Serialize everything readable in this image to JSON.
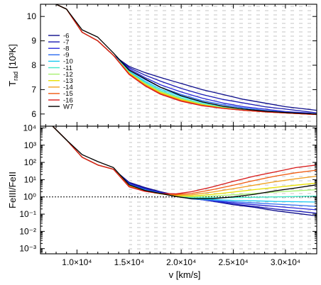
{
  "chart_data": [
    {
      "type": "line",
      "panel": "top",
      "ylabel_main": "T",
      "ylabel_sub": "rad",
      "ylabel_unit": "[10³K]",
      "ylim": [
        5.5,
        10.5
      ],
      "yticks": [
        6,
        7,
        8,
        9,
        10
      ],
      "xlim": [
        6500,
        33000
      ],
      "xticks": [
        10000,
        15000,
        20000,
        25000,
        30000
      ],
      "shaded_region_xmin": 15000,
      "legend": {
        "placement": "upper-left",
        "entries": [
          "-6",
          "-7",
          "-8",
          "-9",
          "-10",
          "-11",
          "-12",
          "-13",
          "-14",
          "-15",
          "-16",
          "W7"
        ]
      },
      "x": [
        7500,
        9000,
        10500,
        12000,
        13500,
        15000,
        16500,
        18000,
        20000,
        22000,
        24000,
        26000,
        28000,
        30000,
        32000,
        33000
      ],
      "inner_common": [
        10.6,
        10.3,
        9.35,
        9.0,
        8.4,
        7.7
      ],
      "series": [
        {
          "name": "-6",
          "color": "#0d0d8c",
          "values": [
            10.6,
            10.3,
            9.35,
            9.0,
            8.4,
            7.95,
            7.7,
            7.5,
            7.25,
            7.0,
            6.8,
            6.6,
            6.45,
            6.3,
            6.2,
            6.15
          ]
        },
        {
          "name": "-7",
          "color": "#1a1ab4",
          "values": [
            10.6,
            10.3,
            9.35,
            9.0,
            8.4,
            7.9,
            7.6,
            7.35,
            7.05,
            6.8,
            6.6,
            6.45,
            6.3,
            6.2,
            6.1,
            6.05
          ]
        },
        {
          "name": "-8",
          "color": "#2828d8",
          "values": [
            10.6,
            10.3,
            9.35,
            9.0,
            8.4,
            7.85,
            7.5,
            7.2,
            6.9,
            6.65,
            6.45,
            6.3,
            6.2,
            6.1,
            6.05,
            6.0
          ]
        },
        {
          "name": "-9",
          "color": "#2c6cf0",
          "values": [
            10.6,
            10.3,
            9.35,
            9.0,
            8.4,
            7.8,
            7.42,
            7.1,
            6.8,
            6.55,
            6.38,
            6.25,
            6.15,
            6.07,
            6.02,
            6.0
          ]
        },
        {
          "name": "-10",
          "color": "#18c8f0",
          "values": [
            10.6,
            10.3,
            9.35,
            9.0,
            8.4,
            7.75,
            7.35,
            7.02,
            6.72,
            6.48,
            6.32,
            6.2,
            6.12,
            6.05,
            6.0,
            5.98
          ]
        },
        {
          "name": "-11",
          "color": "#40e8c8",
          "values": [
            10.6,
            10.3,
            9.35,
            9.0,
            8.4,
            7.72,
            7.3,
            6.96,
            6.66,
            6.43,
            6.28,
            6.17,
            6.1,
            6.04,
            6.0,
            5.98
          ]
        },
        {
          "name": "-12",
          "color": "#a8f070",
          "values": [
            10.6,
            10.3,
            9.35,
            9.0,
            8.4,
            7.7,
            7.26,
            6.92,
            6.62,
            6.4,
            6.26,
            6.16,
            6.09,
            6.04,
            6.0,
            5.98
          ]
        },
        {
          "name": "-13",
          "color": "#e8e000",
          "values": [
            10.6,
            10.3,
            9.35,
            9.0,
            8.4,
            7.68,
            7.23,
            6.88,
            6.59,
            6.38,
            6.25,
            6.15,
            6.09,
            6.04,
            6.0,
            5.98
          ]
        },
        {
          "name": "-14",
          "color": "#f0a020",
          "values": [
            10.6,
            10.3,
            9.35,
            9.0,
            8.4,
            7.66,
            7.2,
            6.85,
            6.56,
            6.36,
            6.24,
            6.15,
            6.09,
            6.04,
            6.0,
            5.98
          ]
        },
        {
          "name": "-15",
          "color": "#f05a10",
          "values": [
            10.6,
            10.3,
            9.35,
            9.0,
            8.4,
            7.64,
            7.18,
            6.83,
            6.54,
            6.35,
            6.23,
            6.15,
            6.09,
            6.04,
            6.0,
            5.98
          ]
        },
        {
          "name": "-16",
          "color": "#d81818",
          "values": [
            10.6,
            10.3,
            9.35,
            9.0,
            8.4,
            7.62,
            7.16,
            6.81,
            6.52,
            6.34,
            6.23,
            6.15,
            6.09,
            6.04,
            6.0,
            5.98
          ]
        },
        {
          "name": "W7",
          "color": "#000000",
          "values": [
            10.6,
            10.3,
            9.45,
            9.15,
            8.5,
            7.8,
            7.45,
            7.1,
            6.75,
            6.5,
            6.32,
            6.2,
            6.12,
            6.06,
            6.02,
            6.0
          ]
        }
      ]
    },
    {
      "type": "line",
      "panel": "bottom",
      "ylabel": "FeIII/FeII",
      "yscale": "log",
      "ylim_log10": [
        -3.3,
        4.1
      ],
      "yticks_log10": [
        -3,
        -2,
        -1,
        0,
        1,
        2,
        3,
        4
      ],
      "ytick_labels": [
        "10⁻³",
        "10⁻²",
        "10⁻¹",
        "10⁰",
        "10¹",
        "10²",
        "10³",
        "10⁴"
      ],
      "xlabel": "v [km/s]",
      "xlim": [
        6500,
        33000
      ],
      "xticks": [
        10000,
        15000,
        20000,
        25000,
        30000
      ],
      "xtick_labels": [
        "1.0×10⁴",
        "1.5×10⁴",
        "2.0×10⁴",
        "2.5×10⁴",
        "3.0×10⁴"
      ],
      "reference_line_log10": 0,
      "shaded_region_xmin": 15000,
      "x": [
        7500,
        9000,
        10500,
        12000,
        13500,
        15000,
        16500,
        18000,
        19500,
        21000,
        23000,
        25000,
        27000,
        29000,
        31000,
        33000
      ],
      "series": [
        {
          "name": "-6",
          "color": "#0d0d8c",
          "values_log10": [
            4.2,
            3.3,
            2.3,
            1.85,
            1.6,
            0.85,
            0.55,
            0.3,
            0.1,
            -0.05,
            -0.25,
            -0.45,
            -0.6,
            -0.8,
            -0.95,
            -1.1
          ]
        },
        {
          "name": "-7",
          "color": "#1a1ab4",
          "values_log10": [
            4.2,
            3.3,
            2.3,
            1.85,
            1.6,
            0.8,
            0.5,
            0.27,
            0.08,
            -0.08,
            -0.25,
            -0.42,
            -0.55,
            -0.7,
            -0.82,
            -0.95
          ]
        },
        {
          "name": "-8",
          "color": "#2828d8",
          "values_log10": [
            4.2,
            3.3,
            2.3,
            1.85,
            1.6,
            0.75,
            0.45,
            0.25,
            0.06,
            -0.1,
            -0.22,
            -0.35,
            -0.45,
            -0.55,
            -0.65,
            -0.75
          ]
        },
        {
          "name": "-9",
          "color": "#2c6cf0",
          "values_log10": [
            4.2,
            3.3,
            2.3,
            1.85,
            1.6,
            0.72,
            0.42,
            0.22,
            0.04,
            -0.12,
            -0.2,
            -0.28,
            -0.35,
            -0.42,
            -0.48,
            -0.55
          ]
        },
        {
          "name": "-10",
          "color": "#18c8f0",
          "values_log10": [
            4.2,
            3.3,
            2.3,
            1.85,
            1.6,
            0.7,
            0.4,
            0.2,
            0.03,
            -0.1,
            -0.15,
            -0.2,
            -0.23,
            -0.26,
            -0.28,
            -0.3
          ]
        },
        {
          "name": "-11",
          "color": "#40e8c8",
          "values_log10": [
            4.2,
            3.3,
            2.3,
            1.85,
            1.6,
            0.68,
            0.38,
            0.19,
            0.04,
            -0.05,
            -0.05,
            -0.04,
            -0.02,
            0.0,
            0.02,
            0.05
          ]
        },
        {
          "name": "-12",
          "color": "#a8f070",
          "values_log10": [
            4.2,
            3.3,
            2.3,
            1.85,
            1.6,
            0.66,
            0.36,
            0.18,
            0.05,
            0.0,
            0.05,
            0.12,
            0.2,
            0.28,
            0.35,
            0.42
          ]
        },
        {
          "name": "-13",
          "color": "#e8e000",
          "values_log10": [
            4.2,
            3.3,
            2.3,
            1.85,
            1.6,
            0.64,
            0.35,
            0.18,
            0.07,
            0.05,
            0.15,
            0.28,
            0.42,
            0.55,
            0.68,
            0.8
          ]
        },
        {
          "name": "-14",
          "color": "#f0a020",
          "values_log10": [
            4.2,
            3.3,
            2.3,
            1.85,
            1.6,
            0.62,
            0.34,
            0.18,
            0.1,
            0.12,
            0.28,
            0.48,
            0.68,
            0.88,
            1.05,
            1.2
          ]
        },
        {
          "name": "-15",
          "color": "#f05a10",
          "values_log10": [
            4.2,
            3.3,
            2.3,
            1.85,
            1.6,
            0.6,
            0.33,
            0.19,
            0.14,
            0.2,
            0.42,
            0.68,
            0.95,
            1.2,
            1.4,
            1.55
          ]
        },
        {
          "name": "-16",
          "color": "#d81818",
          "values_log10": [
            4.2,
            3.3,
            2.3,
            1.85,
            1.6,
            0.58,
            0.32,
            0.2,
            0.18,
            0.3,
            0.58,
            0.9,
            1.2,
            1.45,
            1.7,
            1.85
          ]
        },
        {
          "name": "W7",
          "color": "#000000",
          "values_log10": [
            4.2,
            3.3,
            2.45,
            2.05,
            1.7,
            0.7,
            0.38,
            0.2,
            0.02,
            -0.1,
            -0.1,
            0.0,
            0.15,
            0.35,
            0.52,
            0.7
          ]
        }
      ]
    }
  ]
}
